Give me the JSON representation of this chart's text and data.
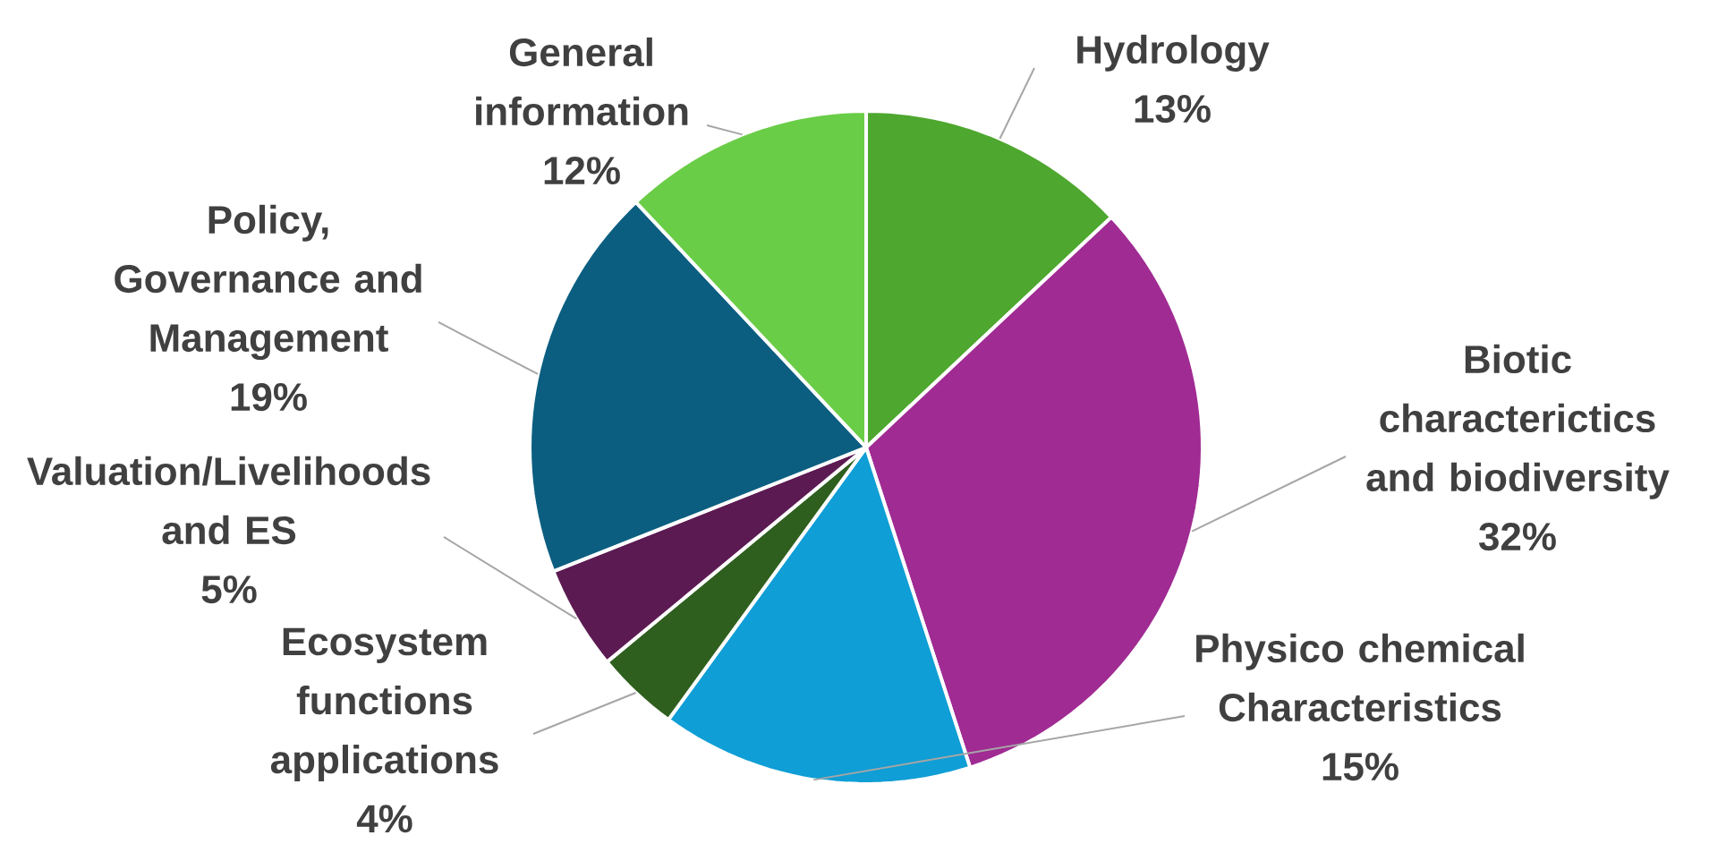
{
  "chart_data": {
    "type": "pie",
    "categories": [
      "Hydrology",
      "Biotic characterictics and biodiversity",
      "Physico chemical Characteristics",
      "Ecosystem functions applications",
      "Valuation/Livelihoods and ES",
      "Policy, Governance and Management",
      "General information"
    ],
    "values": [
      13,
      32,
      15,
      4,
      5,
      19,
      12
    ],
    "value_labels": [
      "13%",
      "32%",
      "15%",
      "4%",
      "5%",
      "19%",
      "12%"
    ],
    "colors": [
      "#4ea72e",
      "#a02b93",
      "#0f9ed5",
      "#2f5f1f",
      "#5c1a52",
      "#0b5e80",
      "#6acd47"
    ]
  }
}
